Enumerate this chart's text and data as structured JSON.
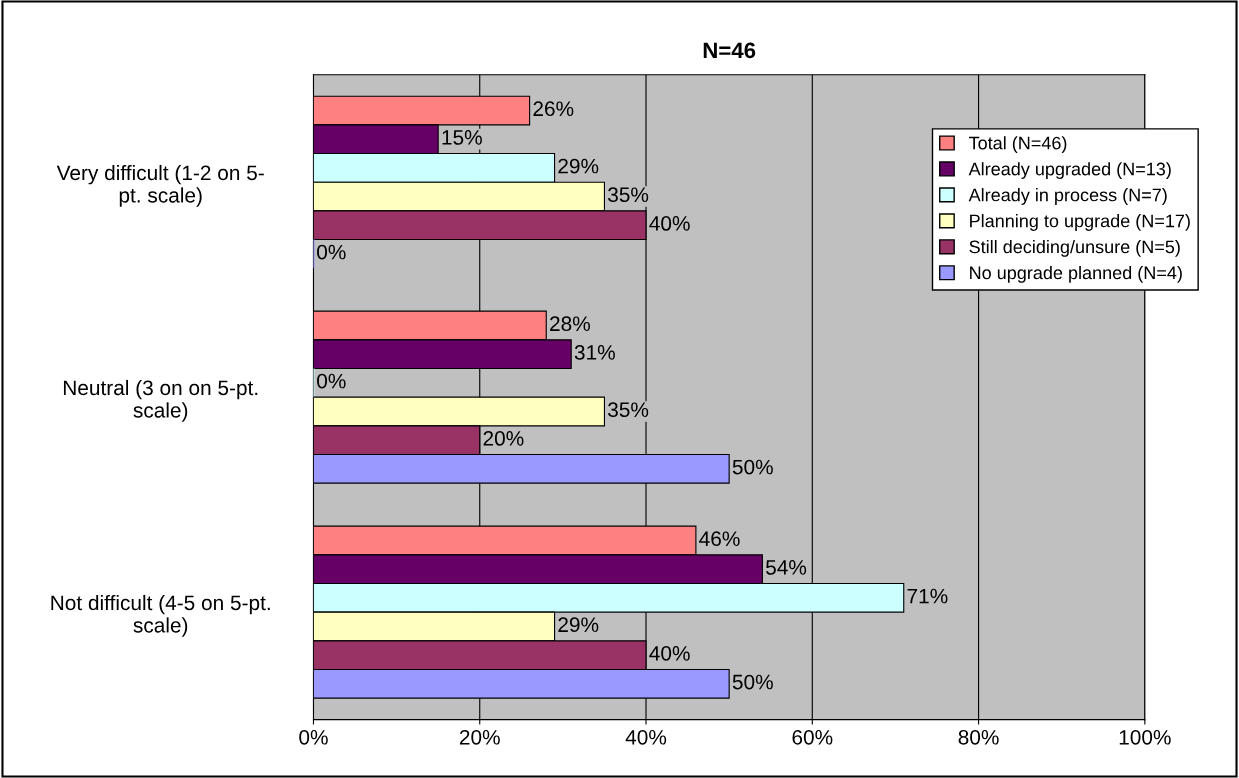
{
  "chart_data": {
    "type": "bar",
    "orientation": "horizontal",
    "title": "N=46",
    "categories": [
      "Very difficult (1-2 on 5-\npt. scale)",
      "Neutral (3 on on 5-pt.\nscale)",
      "Not difficult (4-5 on 5-pt.\nscale)"
    ],
    "series": [
      {
        "name": "Total (N=46)",
        "color": "#ff8080",
        "values": [
          26,
          28,
          46
        ],
        "value_labels": [
          "26%",
          "28%",
          "46%"
        ]
      },
      {
        "name": "Already upgraded (N=13)",
        "color": "#660066",
        "values": [
          15,
          31,
          54
        ],
        "value_labels": [
          "15%",
          "31%",
          "54%"
        ]
      },
      {
        "name": "Already in process (N=7)",
        "color": "#ccffff",
        "values": [
          29,
          0,
          71
        ],
        "value_labels": [
          "29%",
          "0%",
          "71%"
        ]
      },
      {
        "name": "Planning to upgrade (N=17)",
        "color": "#ffffc0",
        "values": [
          35,
          35,
          29
        ],
        "value_labels": [
          "35%",
          "35%",
          "29%"
        ]
      },
      {
        "name": "Still deciding/unsure (N=5)",
        "color": "#993366",
        "values": [
          40,
          20,
          40
        ],
        "value_labels": [
          "40%",
          "20%",
          "40%"
        ]
      },
      {
        "name": "No upgrade planned (N=4)",
        "color": "#9999ff",
        "values": [
          0,
          50,
          50
        ],
        "value_labels": [
          "0%",
          "50%",
          "50%"
        ]
      }
    ],
    "xlim": [
      0,
      100
    ],
    "xticks": [
      {
        "value": 0,
        "label": "0%"
      },
      {
        "value": 20,
        "label": "20%"
      },
      {
        "value": 40,
        "label": "40%"
      },
      {
        "value": 60,
        "label": "60%"
      },
      {
        "value": 80,
        "label": "80%"
      },
      {
        "value": 100,
        "label": "100%"
      }
    ],
    "grid": "x",
    "legend": "top right"
  }
}
